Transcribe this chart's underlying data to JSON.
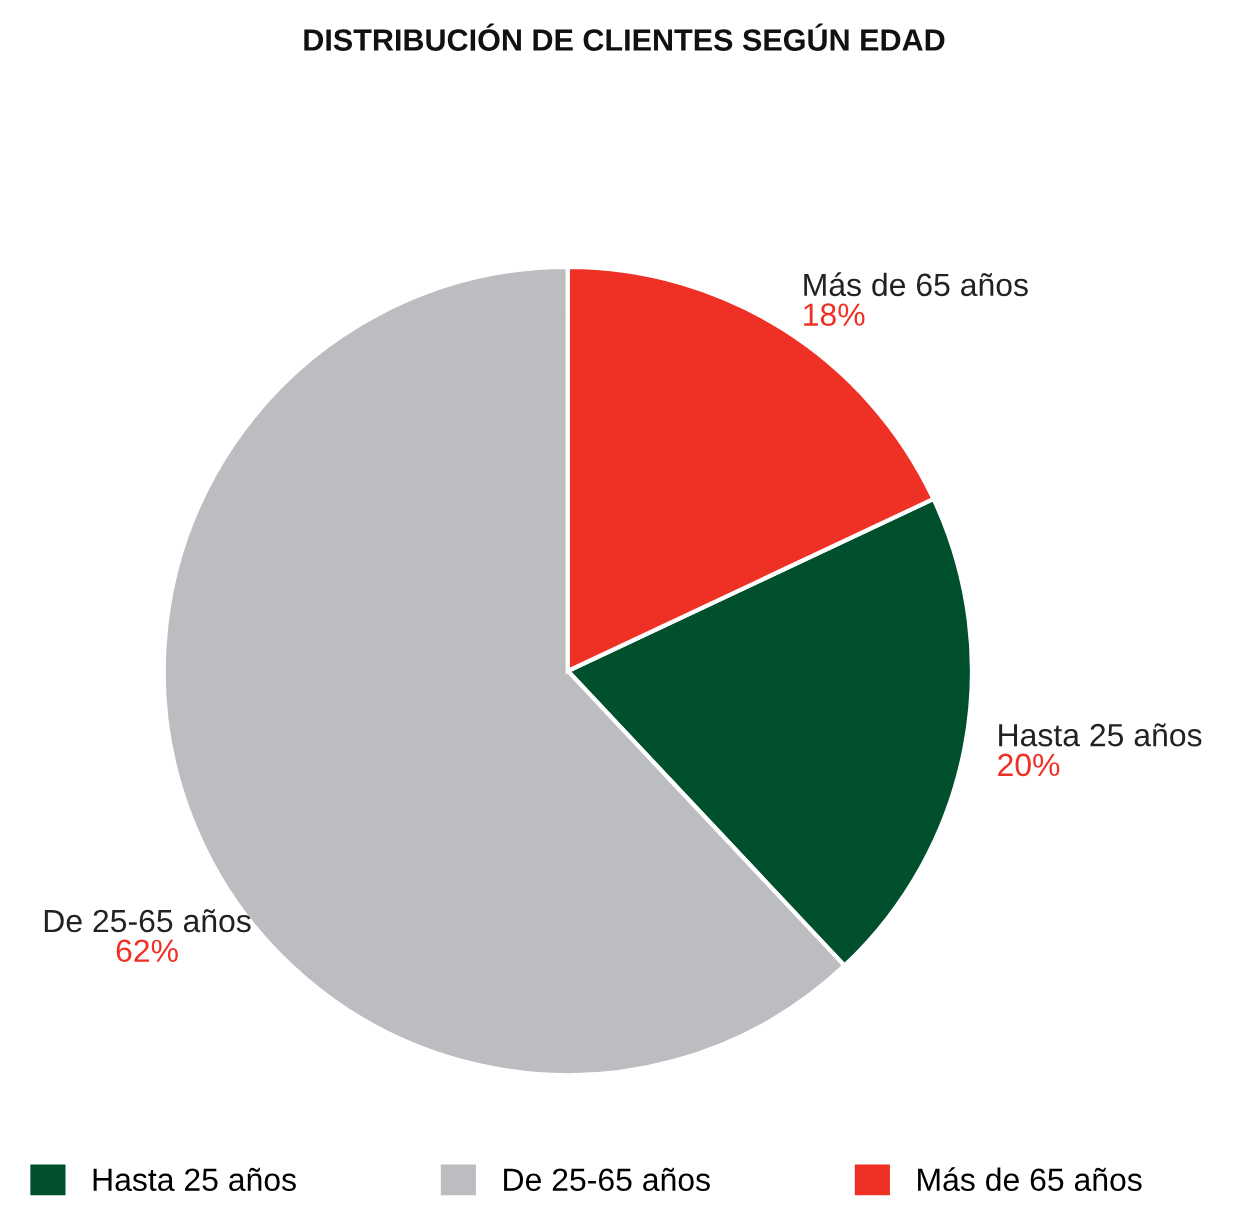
{
  "chart_data": {
    "type": "pie",
    "title": "DISTRIBUCIÓN DE CLIENTES SEGÚN EDAD",
    "categories": [
      "Hasta 25 años",
      "De 25-65 años",
      "Más de 65 años"
    ],
    "values": [
      20,
      62,
      18
    ],
    "value_labels": [
      "20%",
      "62%",
      "18%"
    ],
    "colors": [
      "#004f2d",
      "#bcbdc0",
      "#ee3124"
    ],
    "legend": "bottom"
  }
}
